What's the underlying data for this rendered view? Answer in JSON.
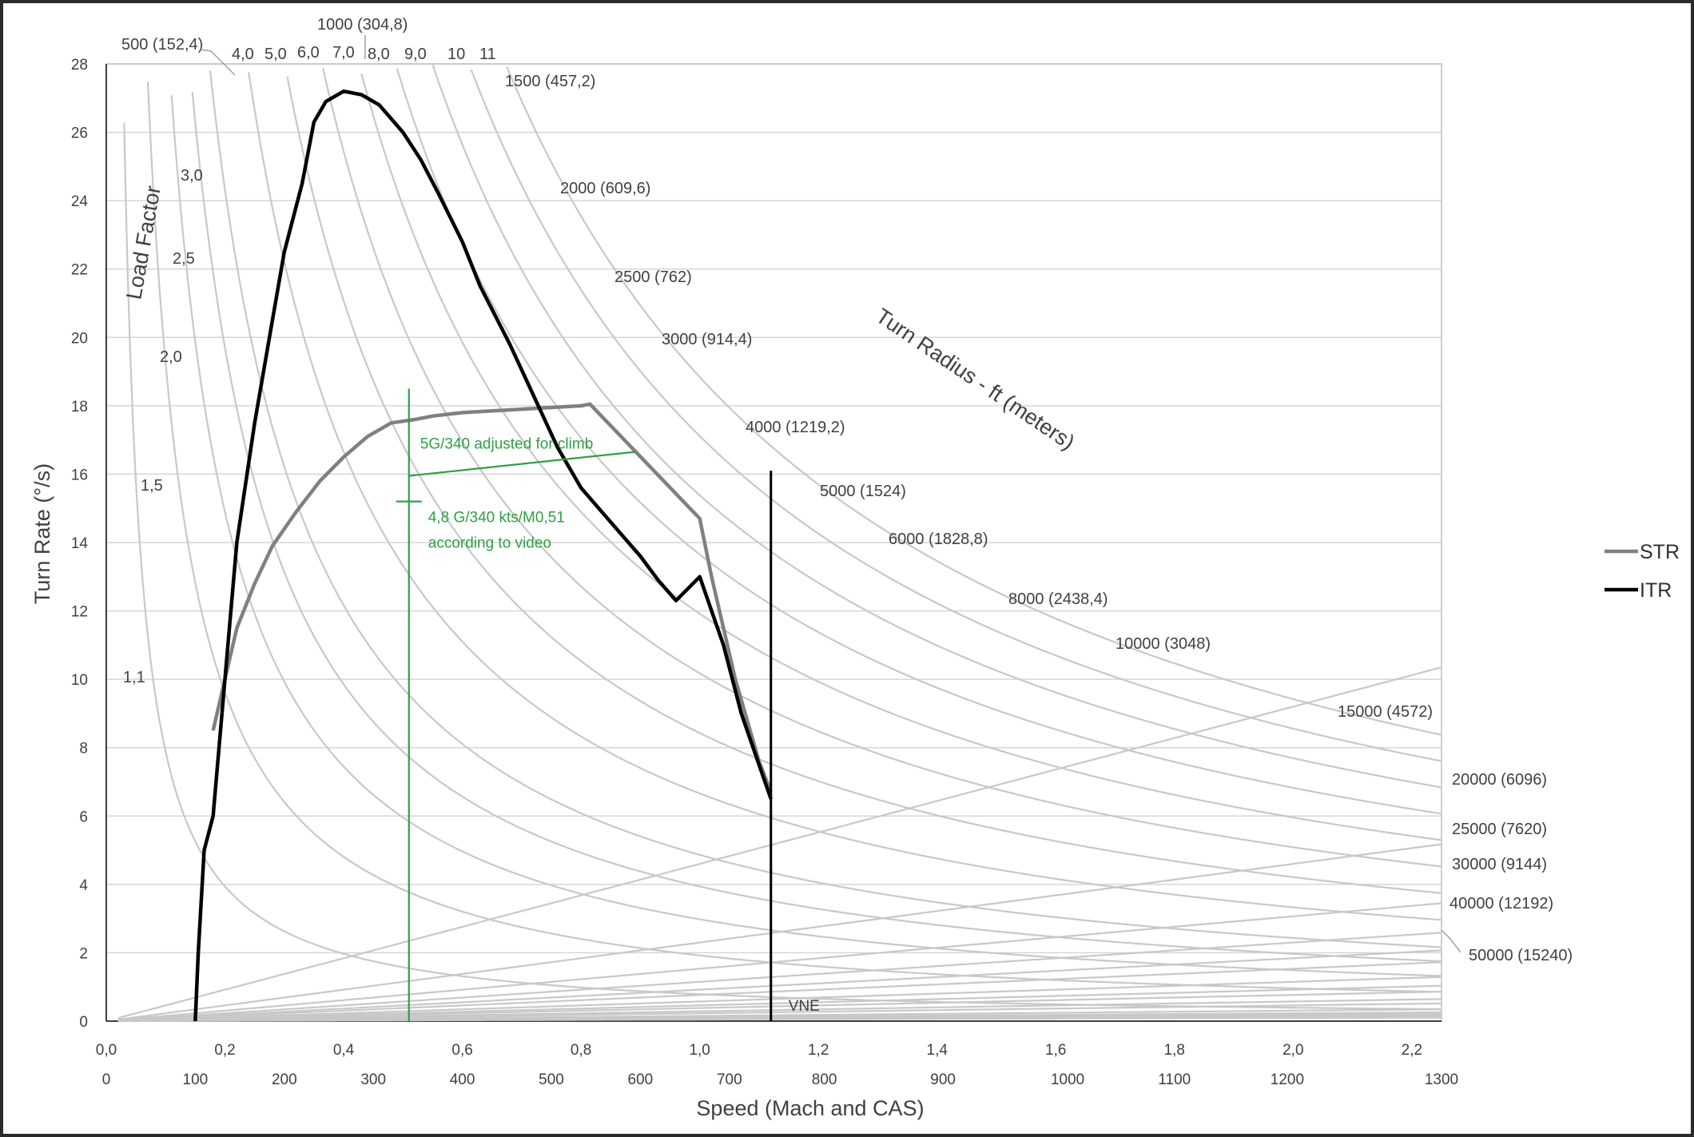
{
  "chart_data": {
    "type": "line",
    "title": "",
    "xlabel": "Speed (Mach and CAS)",
    "ylabel": "Turn Rate (°/s)",
    "xlim": [
      0.0,
      2.25
    ],
    "ylim": [
      0,
      28
    ],
    "x_ticks_mach": [
      "0,0",
      "0,2",
      "0,4",
      "0,6",
      "0,8",
      "1,0",
      "1,2",
      "1,4",
      "1,6",
      "1,8",
      "2,0",
      "2,2"
    ],
    "x_ticks_mach_values": [
      0.0,
      0.2,
      0.4,
      0.6,
      0.8,
      1.0,
      1.2,
      1.4,
      1.6,
      1.8,
      2.0,
      2.2
    ],
    "x_ticks_cas": [
      "0",
      "100",
      "200",
      "300",
      "400",
      "500",
      "600",
      "700",
      "800",
      "900",
      "1000",
      "1100",
      "1200",
      "1300"
    ],
    "x_ticks_cas_values": [
      0,
      0.15,
      0.3,
      0.45,
      0.6,
      0.75,
      0.9,
      1.05,
      1.21,
      1.41,
      1.62,
      1.8,
      1.99,
      2.25
    ],
    "y_ticks": [
      "0",
      "2",
      "4",
      "6",
      "8",
      "10",
      "12",
      "14",
      "16",
      "18",
      "20",
      "22",
      "24",
      "26",
      "28"
    ],
    "y_ticks_values": [
      0,
      2,
      4,
      6,
      8,
      10,
      12,
      14,
      16,
      18,
      20,
      22,
      24,
      26,
      28
    ],
    "grid": true,
    "legend_position": "right",
    "series": [
      {
        "name": "STR",
        "color": "#808080",
        "x": [
          0.18,
          0.2,
          0.22,
          0.25,
          0.28,
          0.32,
          0.36,
          0.4,
          0.44,
          0.48,
          0.52,
          0.55,
          0.6,
          0.65,
          0.7,
          0.75,
          0.8,
          0.815,
          1.0,
          1.02,
          1.04,
          1.06,
          1.08,
          1.1,
          1.12
        ],
        "y": [
          8.5,
          10.0,
          11.5,
          12.8,
          13.9,
          14.9,
          15.8,
          16.5,
          17.1,
          17.5,
          17.6,
          17.7,
          17.8,
          17.85,
          17.9,
          17.95,
          18.0,
          18.05,
          14.7,
          13.0,
          11.5,
          10.0,
          8.8,
          7.6,
          6.7
        ]
      },
      {
        "name": "ITR",
        "color": "#000000",
        "x": [
          0.15,
          0.155,
          0.165,
          0.18,
          0.2,
          0.22,
          0.25,
          0.28,
          0.3,
          0.33,
          0.35,
          0.37,
          0.4,
          0.43,
          0.46,
          0.48,
          0.5,
          0.53,
          0.56,
          0.6,
          0.63,
          0.68,
          0.72,
          0.76,
          0.8,
          0.84,
          0.88,
          0.9,
          0.93,
          0.96,
          1.0,
          1.04,
          1.07,
          1.1,
          1.12
        ],
        "y": [
          0.0,
          2.0,
          5.0,
          6.0,
          10.0,
          14.0,
          17.5,
          20.5,
          22.5,
          24.5,
          26.3,
          26.9,
          27.2,
          27.1,
          26.8,
          26.4,
          26.0,
          25.2,
          24.2,
          22.8,
          21.5,
          19.8,
          18.3,
          16.8,
          15.6,
          14.8,
          14.0,
          13.6,
          12.9,
          12.3,
          13.0,
          11.0,
          9.0,
          7.5,
          6.5
        ]
      }
    ],
    "vertical_lines": [
      {
        "label": "VNE",
        "x": 1.12,
        "y_top": 16.1,
        "color": "#000000"
      },
      {
        "label": "",
        "x": 0.51,
        "y_top": 18.5,
        "color": "#2ea043"
      }
    ],
    "annotations": [
      {
        "text": "5G/340 adjusted for climb",
        "color": "#2ea043"
      },
      {
        "text_lines": [
          "4,8 G/340 kts/M0,51",
          "according to video"
        ],
        "color": "#2ea043"
      }
    ],
    "green_segment": {
      "x": [
        0.51,
        0.89
      ],
      "y": [
        15.95,
        16.65
      ]
    },
    "turn_radius_title": "Turn Radius - ft (meters)",
    "load_factor_title": "Load Factor",
    "load_factors": [
      {
        "label": "1,1",
        "value": 1.1
      },
      {
        "label": "1,5",
        "value": 1.5
      },
      {
        "label": "2,0",
        "value": 2.0
      },
      {
        "label": "2,5",
        "value": 2.5
      },
      {
        "label": "3,0",
        "value": 3.0
      },
      {
        "label": "4,0",
        "value": 4.0
      },
      {
        "label": "5,0",
        "value": 5.0
      },
      {
        "label": "6,0",
        "value": 6.0
      },
      {
        "label": "7,0",
        "value": 7.0
      },
      {
        "label": "8,0",
        "value": 8.0
      },
      {
        "label": "9,0",
        "value": 9.0
      },
      {
        "label": "10",
        "value": 10.0
      },
      {
        "label": "11",
        "value": 11.0
      }
    ],
    "turn_radii": [
      {
        "label": "500 (152,4)",
        "ft": 500
      },
      {
        "label": "1000 (304,8)",
        "ft": 1000
      },
      {
        "label": "1500 (457,2)",
        "ft": 1500
      },
      {
        "label": "2000 (609,6)",
        "ft": 2000
      },
      {
        "label": "2500 (762)",
        "ft": 2500
      },
      {
        "label": "3000 (914,4)",
        "ft": 3000
      },
      {
        "label": "4000 (1219,2)",
        "ft": 4000
      },
      {
        "label": "5000 (1524)",
        "ft": 5000
      },
      {
        "label": "6000 (1828,8)",
        "ft": 6000
      },
      {
        "label": "8000 (2438,4)",
        "ft": 8000
      },
      {
        "label": "10000 (3048)",
        "ft": 10000
      },
      {
        "label": "15000 (4572)",
        "ft": 15000
      },
      {
        "label": "20000 (6096)",
        "ft": 20000
      },
      {
        "label": "25000 (7620)",
        "ft": 25000
      },
      {
        "label": "30000 (9144)",
        "ft": 30000
      },
      {
        "label": "40000 (12192)",
        "ft": 40000
      },
      {
        "label": "50000 (15240)",
        "ft": 50000
      }
    ]
  }
}
